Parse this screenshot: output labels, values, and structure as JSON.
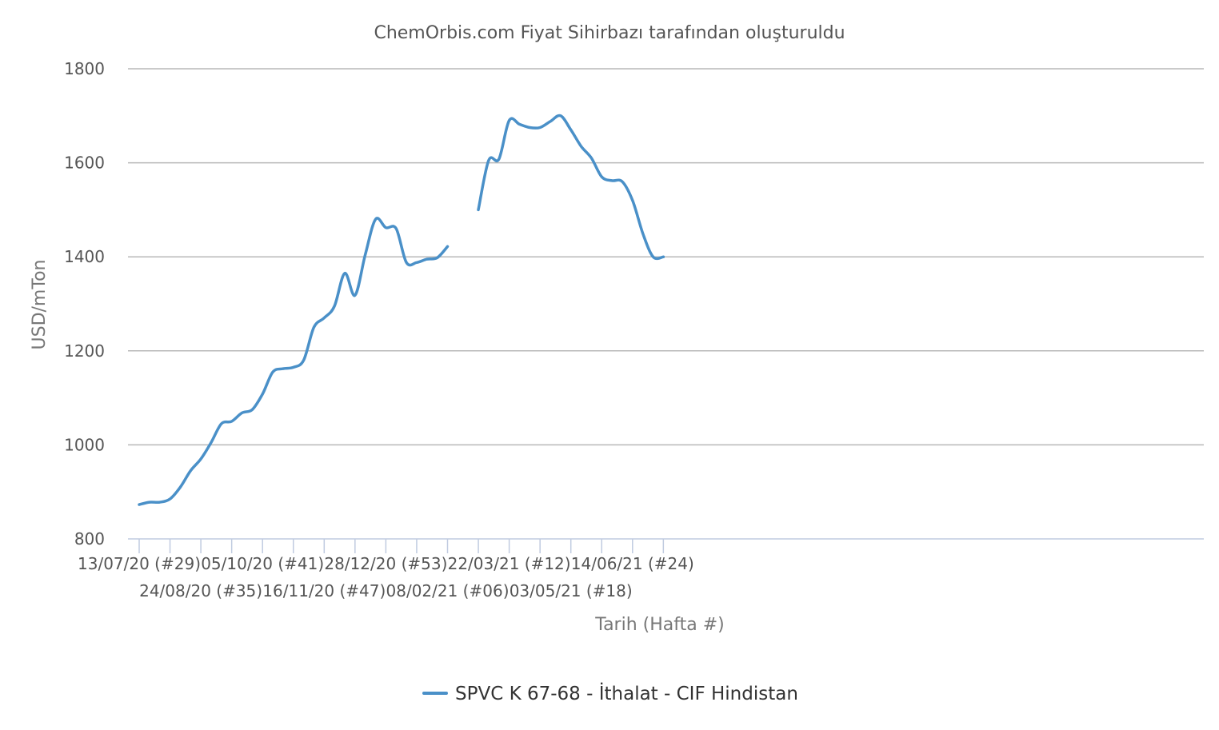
{
  "chart_data": {
    "type": "line",
    "title": "ChemOrbis.com Fiyat Sihirbazı tarafından oluşturuldu",
    "xlabel": "Tarih (Hafta #)",
    "ylabel": "USD/mTon",
    "ylim": [
      800,
      1800
    ],
    "yticks": [
      800,
      1000,
      1200,
      1400,
      1600,
      1800
    ],
    "grid": true,
    "legend_position": "bottom",
    "x_tick_labels": [
      {
        "week_index": 0,
        "label": "13/07/20 (#29)"
      },
      {
        "week_index": 6,
        "label": "24/08/20 (#35)"
      },
      {
        "week_index": 12,
        "label": "05/10/20 (#41)"
      },
      {
        "week_index": 18,
        "label": "16/11/20 (#47)"
      },
      {
        "week_index": 24,
        "label": "28/12/20 (#53)"
      },
      {
        "week_index": 30,
        "label": "08/02/21 (#06)"
      },
      {
        "week_index": 36,
        "label": "22/03/21 (#12)"
      },
      {
        "week_index": 42,
        "label": "03/05/21 (#18)"
      },
      {
        "week_index": 48,
        "label": "14/06/21 (#24)"
      }
    ],
    "series": [
      {
        "name": "SPVC K 67-68 - İthalat - CIF Hindistan",
        "color": "#4a90c8",
        "week_index": [
          0,
          1,
          2,
          3,
          4,
          5,
          6,
          7,
          8,
          9,
          10,
          11,
          12,
          13,
          14,
          15,
          16,
          17,
          18,
          19,
          20,
          21,
          22,
          23,
          24,
          25,
          26,
          27,
          28,
          29,
          30,
          31,
          32,
          33,
          34,
          35,
          36,
          37,
          38,
          39,
          40,
          41,
          42,
          43,
          44,
          45,
          46,
          47,
          48,
          49,
          50,
          51
        ],
        "values": [
          873,
          878,
          878,
          885,
          910,
          945,
          970,
          1005,
          1045,
          1050,
          1068,
          1075,
          1108,
          1155,
          1162,
          1165,
          1180,
          1250,
          1270,
          1295,
          1365,
          1318,
          1405,
          1480,
          1462,
          1460,
          1388,
          1388,
          1395,
          1398,
          1422,
          null,
          null,
          1500,
          1605,
          1608,
          1690,
          1682,
          1675,
          1675,
          1688,
          1700,
          1670,
          1635,
          1610,
          1570,
          1562,
          1560,
          1520,
          1450,
          1400,
          1400
        ]
      }
    ]
  }
}
